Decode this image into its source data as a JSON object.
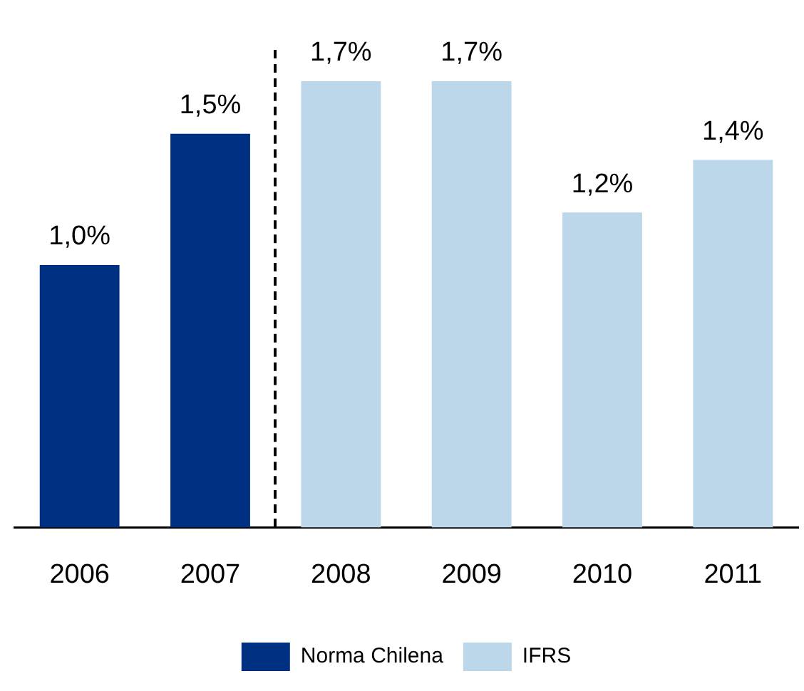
{
  "chart_data": {
    "type": "bar",
    "categories": [
      "2006",
      "2007",
      "2008",
      "2009",
      "2010",
      "2011"
    ],
    "series": [
      {
        "name": "Norma Chilena",
        "color": "#003082",
        "values": [
          1.0,
          1.5,
          null,
          null,
          null,
          null
        ],
        "value_labels": [
          "1,0%",
          "1,5%",
          null,
          null,
          null,
          null
        ]
      },
      {
        "name": "IFRS",
        "color": "#bdd7ea",
        "values": [
          null,
          null,
          1.7,
          1.7,
          1.2,
          1.4
        ],
        "value_labels": [
          null,
          null,
          "1,7%",
          "1,7%",
          "1,2%",
          "1,4%"
        ]
      }
    ],
    "grid": false,
    "legend": "bottom"
  }
}
